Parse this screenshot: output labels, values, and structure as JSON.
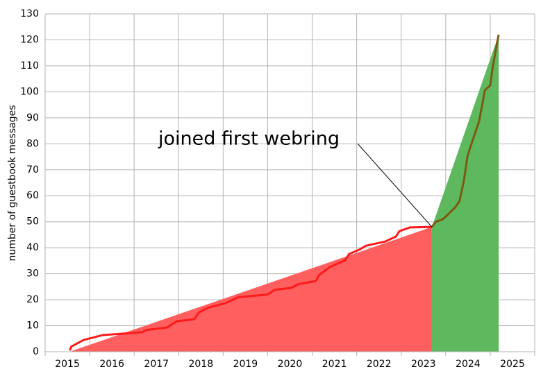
{
  "chart_data": {
    "type": "line",
    "y_label": "number of guestbook messages",
    "annotation": "joined first webring",
    "xlim": [
      2015,
      2026
    ],
    "ylim": [
      0,
      130
    ],
    "xticks": [
      {
        "value": 2015.5,
        "label": "2015"
      },
      {
        "value": 2016.5,
        "label": "2016"
      },
      {
        "value": 2017.5,
        "label": "2017"
      },
      {
        "value": 2018.5,
        "label": "2018"
      },
      {
        "value": 2019.5,
        "label": "2019"
      },
      {
        "value": 2020.5,
        "label": "2020"
      },
      {
        "value": 2021.5,
        "label": "2021"
      },
      {
        "value": 2022.5,
        "label": "2022"
      },
      {
        "value": 2023.5,
        "label": "2023"
      },
      {
        "value": 2024.5,
        "label": "2024"
      },
      {
        "value": 2025.5,
        "label": "2025"
      }
    ],
    "x_gridlines": [
      2015,
      2016,
      2017,
      2018,
      2019,
      2020,
      2021,
      2022,
      2023,
      2024,
      2025,
      2026
    ],
    "yticks": [
      0,
      10,
      20,
      30,
      40,
      50,
      60,
      70,
      80,
      90,
      100,
      110,
      120,
      130
    ],
    "grid": true,
    "annotation_point": [
      2023.69,
      48
    ],
    "series": [
      {
        "kind": "area",
        "color": "#ff5f5f",
        "x": [
          2015.55,
          2023.69
        ],
        "values": [
          0,
          48
        ]
      },
      {
        "kind": "area",
        "color": "#5eb95e",
        "x": [
          2023.69,
          2025.19
        ],
        "values": [
          48,
          122
        ]
      },
      {
        "kind": "line",
        "color": "#ff1a1a",
        "x": [
          2015.55,
          2015.59,
          2015.75,
          2015.86,
          2016.29,
          2016.79,
          2017.18,
          2017.26,
          2017.73,
          2017.96,
          2018.35,
          2018.46,
          2018.67,
          2019.06,
          2019.34,
          2020.0,
          2020.15,
          2020.54,
          2020.69,
          2021.08,
          2021.16,
          2021.4,
          2021.74,
          2021.83,
          2022.05,
          2022.21,
          2022.64,
          2022.88,
          2022.96,
          2023.19,
          2023.69
        ],
        "values": [
          0.5,
          2,
          3.5,
          4.5,
          6.4,
          7,
          7.5,
          8.3,
          9.3,
          11.7,
          12.5,
          15.2,
          17,
          18.7,
          21,
          22,
          23.8,
          24.6,
          26,
          27.2,
          29.6,
          32.6,
          35.2,
          37.6,
          39.2,
          40.8,
          42.4,
          44.3,
          46.4,
          47.8,
          48
        ]
      },
      {
        "kind": "line",
        "color": "#7a5a10",
        "x": [
          2023.69,
          2023.77,
          2023.94,
          2024.2,
          2024.31,
          2024.41,
          2024.49,
          2024.59,
          2024.75,
          2024.88,
          2025.0,
          2025.06,
          2025.19
        ],
        "values": [
          48,
          49.9,
          51,
          55.3,
          57.9,
          66,
          75.3,
          80.6,
          88.6,
          100.6,
          102.5,
          110,
          122
        ]
      }
    ]
  }
}
